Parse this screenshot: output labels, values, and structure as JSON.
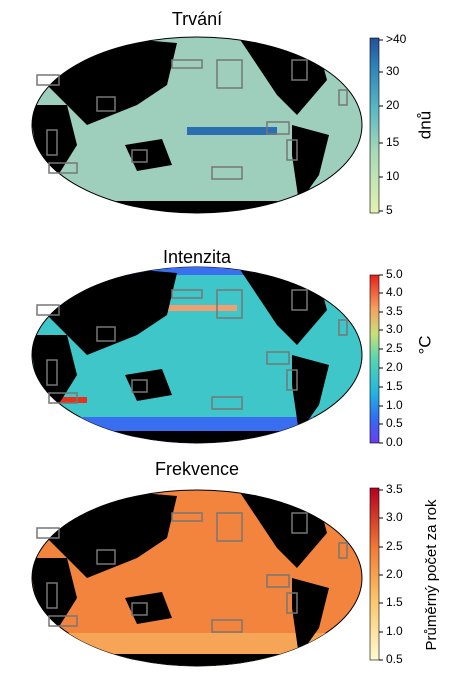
{
  "panels": [
    {
      "title": "Trvání",
      "colorbar": {
        "label": "dnů",
        "ticks": [
          ">40",
          "30",
          "20",
          "15",
          "10",
          "5"
        ]
      }
    },
    {
      "title": "Intenzita",
      "colorbar": {
        "label": "°C",
        "ticks": [
          "5.0",
          "4.0",
          "3.5",
          "3.0",
          "2.5",
          "2.0",
          "1.5",
          "1.0",
          "0.5",
          "0.0"
        ]
      }
    },
    {
      "title": "Frekvence",
      "colorbar": {
        "label": "Průměrný počet za rok",
        "ticks": [
          "3.5",
          "3.0",
          "2.5",
          "2.0",
          "1.5",
          "1.0",
          "0.5"
        ]
      }
    }
  ]
}
